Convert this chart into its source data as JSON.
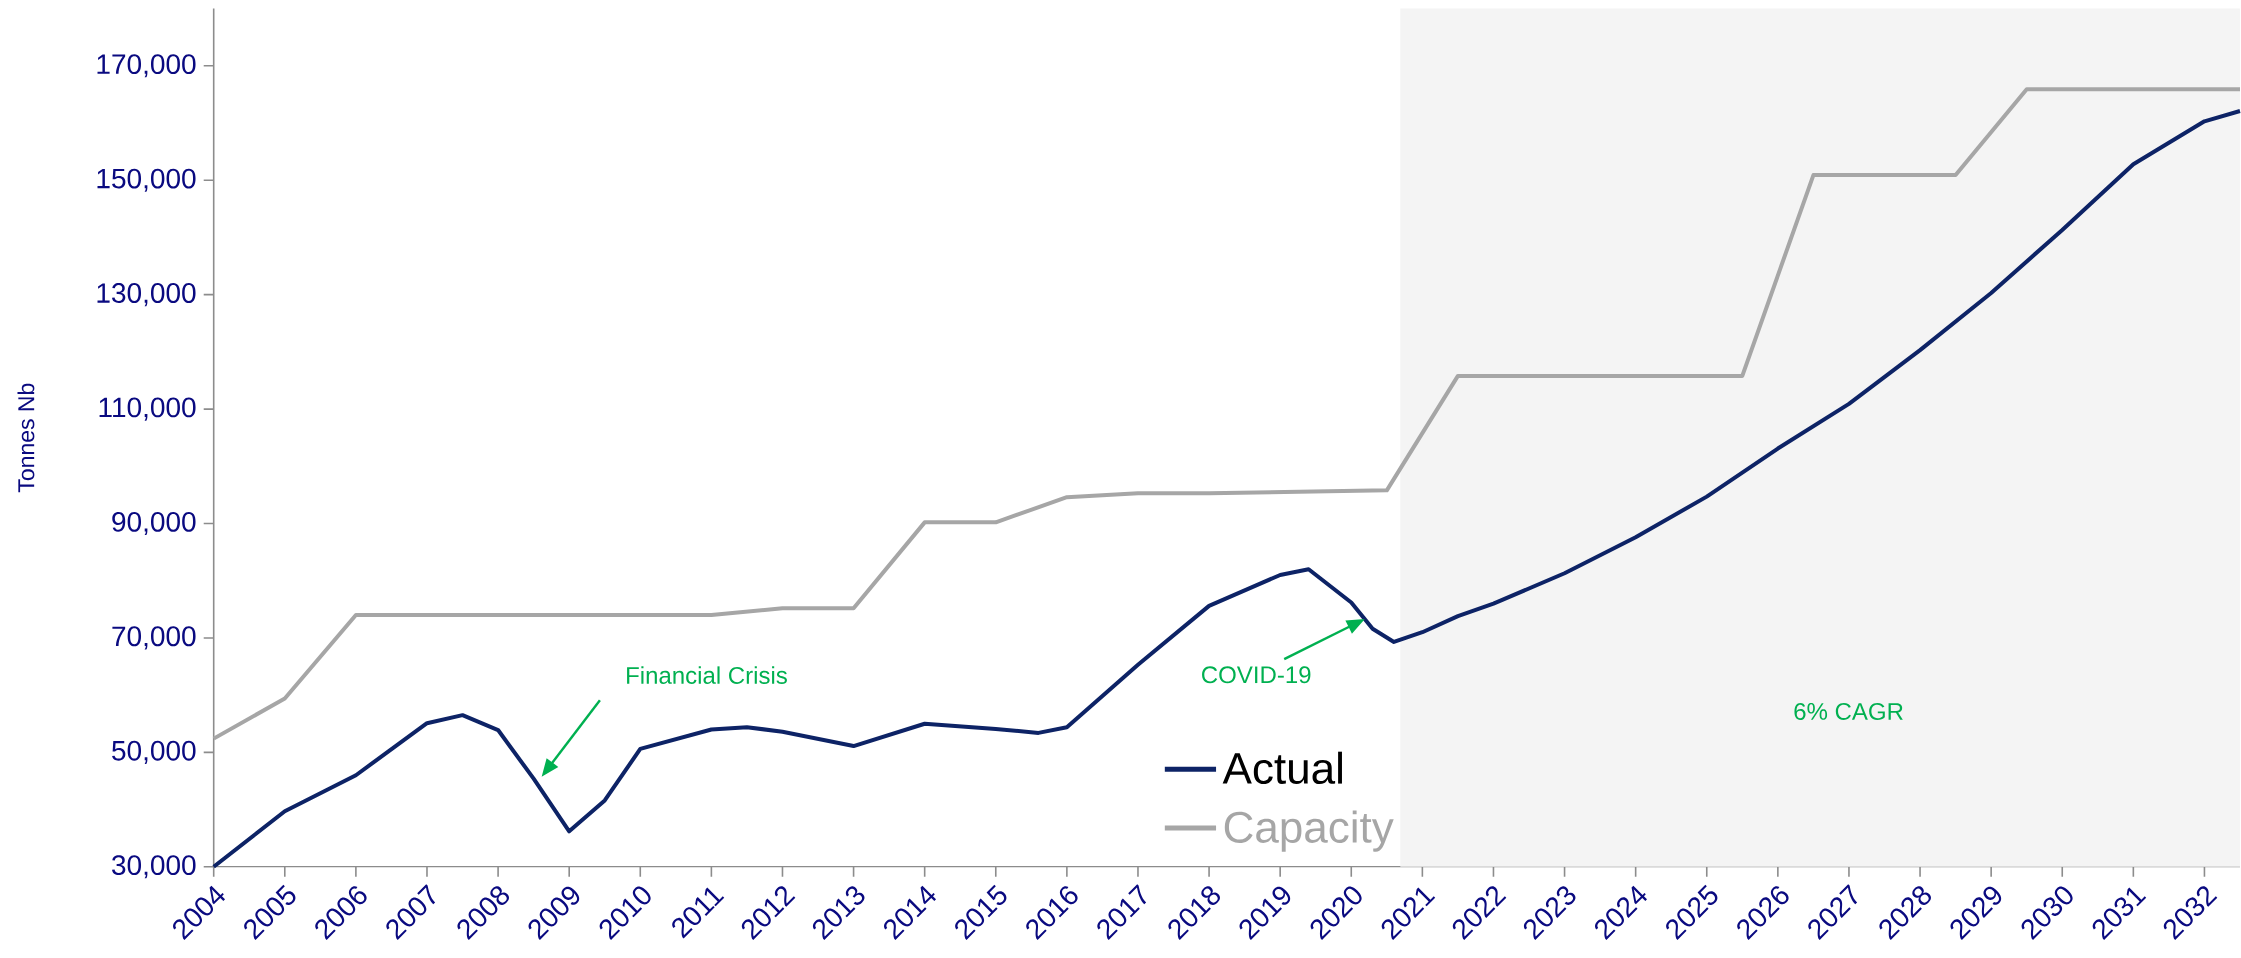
{
  "chart_data": {
    "type": "line",
    "ylabel": "Tonnes Nb",
    "xlim": [
      2004,
      2032.5
    ],
    "ylim": [
      30000,
      180000
    ],
    "xticks": [
      2004,
      2005,
      2006,
      2007,
      2008,
      2009,
      2010,
      2011,
      2012,
      2013,
      2014,
      2015,
      2016,
      2017,
      2018,
      2019,
      2020,
      2021,
      2022,
      2023,
      2024,
      2025,
      2026,
      2027,
      2028,
      2029,
      2030,
      2031,
      2032
    ],
    "yticks": [
      {
        "value": 30000,
        "label": "30,000"
      },
      {
        "value": 50000,
        "label": "50,000"
      },
      {
        "value": 70000,
        "label": "70,000"
      },
      {
        "value": 90000,
        "label": "90,000"
      },
      {
        "value": 110000,
        "label": "110,000"
      },
      {
        "value": 130000,
        "label": "130,000"
      },
      {
        "value": 150000,
        "label": "150,000"
      },
      {
        "value": 170000,
        "label": "170,000"
      }
    ],
    "series": [
      {
        "name": "Actual",
        "color": "#0d2366",
        "x": [
          2004,
          2005,
          2006,
          2007,
          2007.5,
          2008,
          2008.5,
          2009,
          2009.5,
          2010,
          2011,
          2011.5,
          2012,
          2013,
          2014,
          2015,
          2015.6,
          2016,
          2017,
          2018,
          2019,
          2019.4,
          2020,
          2020.3,
          2020.6,
          2021,
          2021.5,
          2022,
          2023,
          2024,
          2025,
          2026,
          2027,
          2028,
          2029,
          2030,
          2031,
          2032,
          2032.5
        ],
        "values": [
          30000,
          39700,
          46000,
          55100,
          56500,
          53900,
          45400,
          36200,
          41600,
          50600,
          54000,
          54400,
          53600,
          51100,
          55000,
          54100,
          53400,
          54400,
          65300,
          75600,
          81000,
          82000,
          76200,
          71600,
          69300,
          71000,
          73800,
          76000,
          81300,
          87600,
          94700,
          103100,
          110900,
          120300,
          130300,
          141300,
          152800,
          160300,
          162100
        ]
      },
      {
        "name": "Capacity",
        "color": "#a6a6a6",
        "x": [
          2004,
          2005,
          2006,
          2011,
          2012,
          2013,
          2014,
          2015,
          2016,
          2017,
          2018,
          2020.5,
          2021.5,
          2025.5,
          2026.5,
          2028.5,
          2029.5,
          2032.5
        ],
        "values": [
          52400,
          59400,
          74000,
          74000,
          75200,
          75200,
          90200,
          90200,
          94600,
          95300,
          95300,
          95800,
          115800,
          115800,
          150900,
          150900,
          165900,
          165900
        ]
      }
    ],
    "bands": [
      {
        "axis": "x",
        "from": 2020.69,
        "to": 2032.5,
        "color": "#f4f4f4"
      }
    ],
    "annotations": [
      "Financial Crisis",
      {
        "text": "COVID-19",
        "x": 2020.19,
        "y": 73300
      },
      "6% CAGR"
    ],
    "grid": false,
    "legend": "bottom",
    "marker": "none",
    "line_style": "solid"
  }
}
